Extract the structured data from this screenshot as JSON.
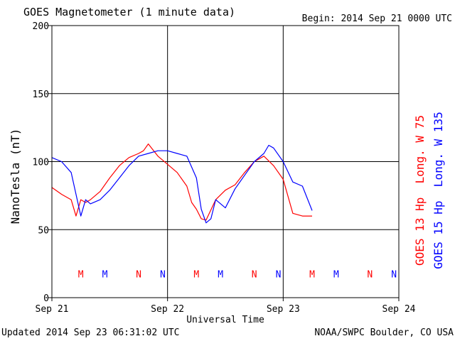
{
  "chart_data": {
    "type": "line",
    "title": "GOES Magnetometer (1 minute data)",
    "begin_label": "Begin:  2014 Sep 21 0000 UTC",
    "xlabel": "Universal Time",
    "ylabel": "NanoTesla (nT)",
    "x_ticks": [
      "Sep 21",
      "Sep 22",
      "Sep 23",
      "Sep 24"
    ],
    "xlim": [
      "2014-09-21 00:00",
      "2014-09-24 00:00"
    ],
    "ylim": [
      0,
      200
    ],
    "y_ticks": [
      "0",
      "50",
      "100",
      "150",
      "200"
    ],
    "grid": true,
    "footer_left": "Updated 2014 Sep 23 06:31:02 UTC",
    "footer_right": "NOAA/SWPC Boulder, CO USA",
    "colors": {
      "goes13": "#ff0000",
      "goes15": "#0000ff"
    },
    "series": [
      {
        "name": "GOES 13 Hp  Long. W 75",
        "color": "#ff0000",
        "x": [
          "2014-09-21 00:00",
          "2014-09-21 02:00",
          "2014-09-21 04:00",
          "2014-09-21 05:00",
          "2014-09-21 06:00",
          "2014-09-21 07:00",
          "2014-09-21 08:00",
          "2014-09-21 10:00",
          "2014-09-21 12:00",
          "2014-09-21 14:00",
          "2014-09-21 16:00",
          "2014-09-21 18:00",
          "2014-09-21 19:00",
          "2014-09-21 20:00",
          "2014-09-21 22:00",
          "2014-09-22 00:00",
          "2014-09-22 02:00",
          "2014-09-22 04:00",
          "2014-09-22 05:00",
          "2014-09-22 06:00",
          "2014-09-22 07:00",
          "2014-09-22 08:00",
          "2014-09-22 10:00",
          "2014-09-22 12:00",
          "2014-09-22 14:00",
          "2014-09-22 16:00",
          "2014-09-22 18:00",
          "2014-09-22 20:00",
          "2014-09-22 22:00",
          "2014-09-23 00:00",
          "2014-09-23 02:00",
          "2014-09-23 04:00",
          "2014-09-23 06:00"
        ],
        "values": [
          81,
          76,
          72,
          60,
          72,
          70,
          72,
          78,
          88,
          97,
          103,
          106,
          108,
          113,
          104,
          98,
          92,
          82,
          70,
          65,
          58,
          57,
          72,
          79,
          83,
          92,
          100,
          104,
          97,
          87,
          62,
          60,
          60
        ]
      },
      {
        "name": "GOES 15 Hp  Long. W 135",
        "color": "#0000ff",
        "x": [
          "2014-09-21 00:00",
          "2014-09-21 02:00",
          "2014-09-21 04:00",
          "2014-09-21 06:00",
          "2014-09-21 07:00",
          "2014-09-21 08:00",
          "2014-09-21 10:00",
          "2014-09-21 12:00",
          "2014-09-21 14:00",
          "2014-09-21 16:00",
          "2014-09-21 18:00",
          "2014-09-21 20:00",
          "2014-09-21 22:00",
          "2014-09-22 00:00",
          "2014-09-22 02:00",
          "2014-09-22 04:00",
          "2014-09-22 06:00",
          "2014-09-22 07:00",
          "2014-09-22 08:00",
          "2014-09-22 09:00",
          "2014-09-22 10:00",
          "2014-09-22 12:00",
          "2014-09-22 14:00",
          "2014-09-22 16:00",
          "2014-09-22 18:00",
          "2014-09-22 20:00",
          "2014-09-22 21:00",
          "2014-09-22 22:00",
          "2014-09-23 00:00",
          "2014-09-23 02:00",
          "2014-09-23 04:00",
          "2014-09-23 06:00"
        ],
        "values": [
          103,
          100,
          92,
          60,
          72,
          69,
          72,
          79,
          88,
          97,
          104,
          106,
          108,
          108,
          106,
          104,
          88,
          65,
          55,
          58,
          72,
          66,
          80,
          90,
          100,
          106,
          112,
          110,
          100,
          85,
          82,
          64
        ]
      }
    ],
    "event_markers": {
      "labels": [
        "M",
        "M",
        "N",
        "N",
        "M",
        "M",
        "N",
        "N",
        "M",
        "M",
        "N",
        "N"
      ],
      "x": [
        "2014-09-21 06:00",
        "2014-09-21 11:00",
        "2014-09-21 18:00",
        "2014-09-21 23:00",
        "2014-09-22 06:00",
        "2014-09-22 11:00",
        "2014-09-22 18:00",
        "2014-09-22 23:00",
        "2014-09-23 06:00",
        "2014-09-23 11:00",
        "2014-09-23 18:00",
        "2014-09-23 23:00"
      ],
      "series": [
        "goes13",
        "goes15",
        "goes13",
        "goes15",
        "goes13",
        "goes15",
        "goes13",
        "goes15",
        "goes13",
        "goes15",
        "goes13",
        "goes15"
      ],
      "y": 17
    }
  }
}
